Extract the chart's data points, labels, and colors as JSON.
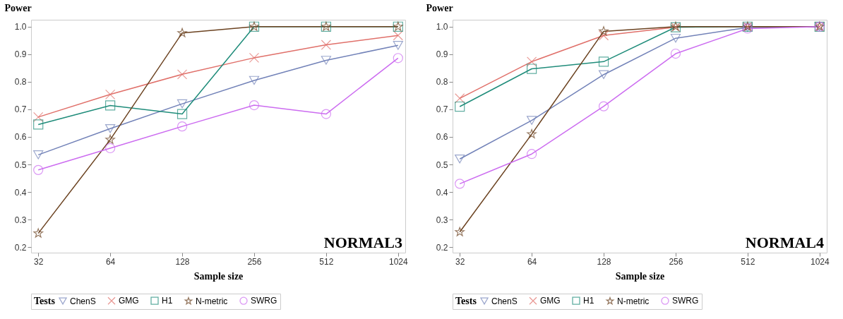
{
  "chart_data": [
    {
      "type": "line",
      "xlabel": "Sample size",
      "ylabel": "Power",
      "legend_title": "Tests",
      "legend": "bottom",
      "grid": false,
      "annotations": [
        "NORMAL3"
      ],
      "categories": [
        "32",
        "64",
        "128",
        "256",
        "512",
        "1024"
      ],
      "ylim": [
        0.18,
        1.025
      ],
      "yticks": [
        {
          "value": 0.2,
          "label": "0.2"
        },
        {
          "value": 0.3,
          "label": "0.3"
        },
        {
          "value": 0.4,
          "label": "0.4"
        },
        {
          "value": 0.5,
          "label": "0.5"
        },
        {
          "value": 0.6,
          "label": "0.6"
        },
        {
          "value": 0.7,
          "label": "0.7"
        },
        {
          "value": 0.8,
          "label": "0.8"
        },
        {
          "value": 0.9,
          "label": "0.9"
        },
        {
          "value": 1,
          "label": "1.0"
        }
      ],
      "series": [
        {
          "name": "ChenS",
          "color": "#7282b8",
          "marker": "triangle",
          "values": [
            0.535,
            0.63,
            0.72,
            0.805,
            0.878,
            0.932
          ]
        },
        {
          "name": "GMG",
          "color": "#e0706a",
          "marker": "cross",
          "values": [
            0.672,
            0.754,
            0.827,
            0.887,
            0.934,
            0.968
          ]
        },
        {
          "name": "H1",
          "color": "#1f8c7a",
          "marker": "square",
          "values": [
            0.645,
            0.714,
            0.683,
            1.0,
            1.0,
            1.0
          ]
        },
        {
          "name": "N-metric",
          "color": "#6b4220",
          "marker": "star",
          "values": [
            0.25,
            0.59,
            0.977,
            1.0,
            1.0,
            1.0
          ]
        },
        {
          "name": "SWRG",
          "color": "#cc6cf0",
          "marker": "circle",
          "values": [
            0.48,
            0.559,
            0.638,
            0.715,
            0.683,
            0.886
          ]
        }
      ]
    },
    {
      "type": "line",
      "xlabel": "Sample size",
      "ylabel": "Power",
      "legend_title": "Tests",
      "legend": "bottom",
      "grid": false,
      "annotations": [
        "NORMAL4"
      ],
      "categories": [
        "32",
        "64",
        "128",
        "256",
        "512",
        "1024"
      ],
      "ylim": [
        0.18,
        1.025
      ],
      "yticks": [
        {
          "value": 0.2,
          "label": "0.2"
        },
        {
          "value": 0.3,
          "label": "0.3"
        },
        {
          "value": 0.4,
          "label": "0.4"
        },
        {
          "value": 0.5,
          "label": "0.5"
        },
        {
          "value": 0.6,
          "label": "0.6"
        },
        {
          "value": 0.7,
          "label": "0.7"
        },
        {
          "value": 0.8,
          "label": "0.8"
        },
        {
          "value": 0.9,
          "label": "0.9"
        },
        {
          "value": 1,
          "label": "1.0"
        }
      ],
      "series": [
        {
          "name": "ChenS",
          "color": "#7282b8",
          "marker": "triangle",
          "values": [
            0.52,
            0.66,
            0.826,
            0.958,
            0.997,
            1.0
          ]
        },
        {
          "name": "GMG",
          "color": "#e0706a",
          "marker": "cross",
          "values": [
            0.74,
            0.873,
            0.968,
            0.998,
            1.0,
            1.0
          ]
        },
        {
          "name": "H1",
          "color": "#1f8c7a",
          "marker": "square",
          "values": [
            0.71,
            0.847,
            0.873,
            0.998,
            1.0,
            1.0
          ]
        },
        {
          "name": "N-metric",
          "color": "#6b4220",
          "marker": "star",
          "values": [
            0.255,
            0.61,
            0.983,
            1.0,
            1.0,
            1.0
          ]
        },
        {
          "name": "SWRG",
          "color": "#cc6cf0",
          "marker": "circle",
          "values": [
            0.43,
            0.538,
            0.711,
            0.902,
            0.993,
            1.0
          ]
        }
      ]
    }
  ]
}
